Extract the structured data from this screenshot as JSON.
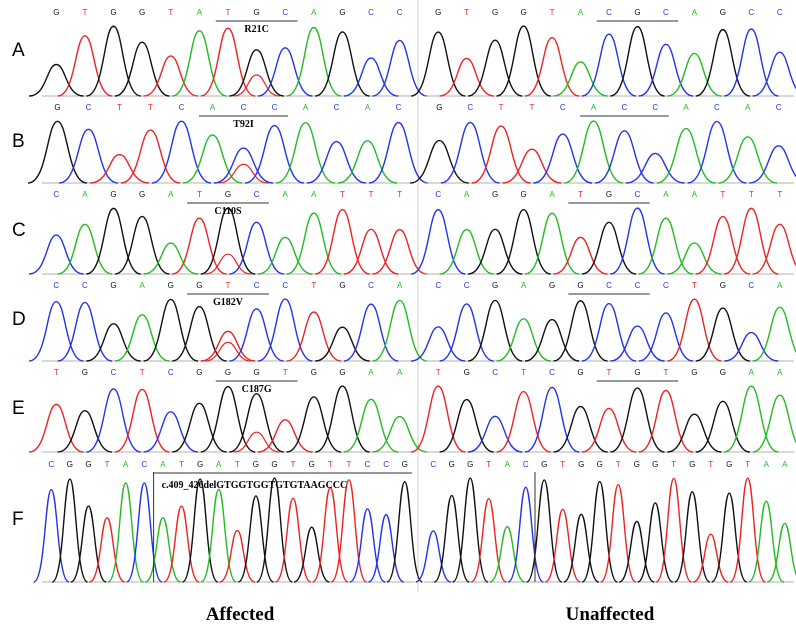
{
  "rows": [
    {
      "label": "A",
      "mutation": "R21C",
      "affected_bases": [
        "G",
        "T",
        "G",
        "G",
        "T",
        "A",
        "T",
        "G",
        "C",
        "A",
        "G",
        "C",
        "C"
      ],
      "unaffected_bases": [
        "G",
        "T",
        "G",
        "G",
        "T",
        "A",
        "C",
        "G",
        "C",
        "A",
        "G",
        "C",
        "C"
      ]
    },
    {
      "label": "B",
      "mutation": "T92I",
      "affected_bases": [
        "G",
        "C",
        "T",
        "T",
        "C",
        "A",
        "C",
        "C",
        "A",
        "C",
        "A",
        "C"
      ],
      "unaffected_bases": [
        "G",
        "C",
        "T",
        "T",
        "C",
        "A",
        "C",
        "C",
        "A",
        "C",
        "A",
        "C"
      ]
    },
    {
      "label": "C",
      "mutation": "C110S",
      "affected_bases": [
        "C",
        "A",
        "G",
        "G",
        "A",
        "T",
        "G",
        "C",
        "A",
        "A",
        "T",
        "T",
        "T"
      ],
      "unaffected_bases": [
        "C",
        "A",
        "G",
        "G",
        "A",
        "T",
        "G",
        "C",
        "A",
        "A",
        "T",
        "T",
        "T"
      ]
    },
    {
      "label": "D",
      "mutation": "G182V",
      "affected_bases": [
        "C",
        "C",
        "G",
        "A",
        "G",
        "G",
        "T",
        "C",
        "C",
        "T",
        "G",
        "C",
        "A"
      ],
      "unaffected_bases": [
        "C",
        "C",
        "G",
        "A",
        "G",
        "G",
        "C",
        "C",
        "C",
        "T",
        "G",
        "C",
        "A"
      ]
    },
    {
      "label": "E",
      "mutation": "C187G",
      "affected_bases": [
        "T",
        "G",
        "C",
        "T",
        "C",
        "G",
        "G",
        "G",
        "T",
        "G",
        "G",
        "A",
        "A"
      ],
      "unaffected_bases": [
        "T",
        "G",
        "C",
        "T",
        "C",
        "G",
        "T",
        "G",
        "T",
        "G",
        "G",
        "A",
        "A"
      ]
    },
    {
      "label": "F",
      "mutation": "c.409_426delGTGGTGGTGTGTAAGCCC",
      "affected_bases": [
        "C",
        "G",
        "G",
        "T",
        "A",
        "C",
        "A",
        "T",
        "G",
        "A",
        "T",
        "G",
        "G",
        "T",
        "G",
        "T",
        "T",
        "C",
        "C",
        "G"
      ],
      "unaffected_bases": [
        "C",
        "G",
        "G",
        "T",
        "A",
        "C",
        "G",
        "T",
        "G",
        "G",
        "T",
        "G",
        "G",
        "T",
        "G",
        "T",
        "G",
        "T",
        "A",
        "A"
      ]
    }
  ],
  "footer": {
    "left": "Affected",
    "right": "Unaffected"
  }
}
